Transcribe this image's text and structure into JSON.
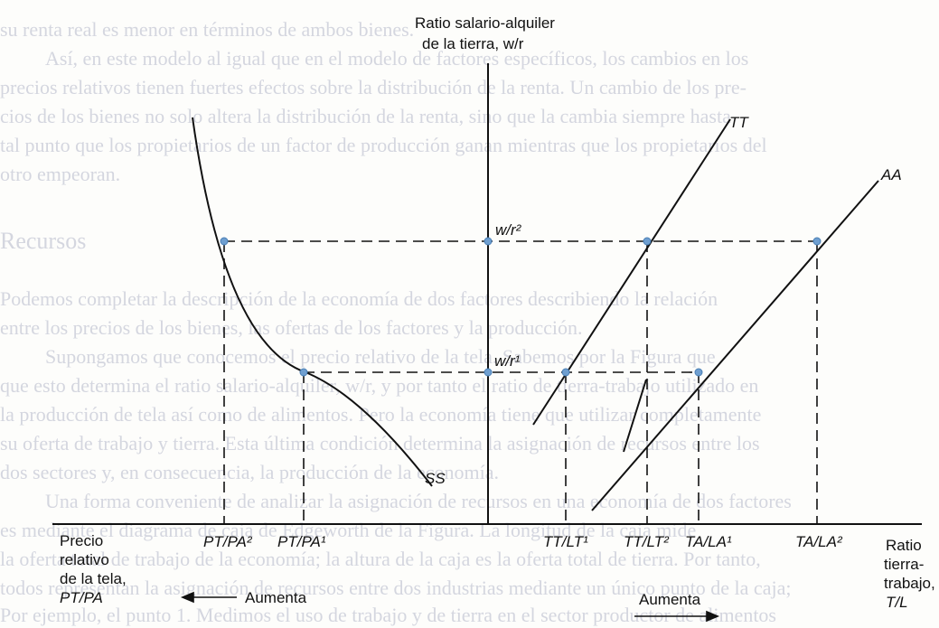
{
  "background_text": [
    "su renta real es menor en términos de ambos bienes.",
    "Así, en este modelo al igual que en el modelo de factores específicos, los cambios en los",
    "precios relativos tienen fuertes efectos sobre la distribución de la renta. Un cambio de los pre-",
    "cios de los bienes no solo altera la distribución de la renta, sino que la cambia siempre hasta",
    "tal punto que los propietarios de un factor de producción ganan mientras que los propietarios del",
    "otro empeoran.",
    "Recursos",
    "Podemos completar la descripción de la economía de dos factores describiendo la relación",
    "entre los precios de los bienes, las ofertas de los factores y la producción.",
    "Supongamos que conocemos el precio relativo de la tela. Sabemos por la Figura que",
    "que esto determina el ratio salario-alquiler, w/r, y por tanto el ratio de tierra-trabajo utilizado en",
    "la producción de tela así como de alimentos. Pero la economía tiene que utilizar completamente",
    "su oferta de trabajo y tierra. Esta última condición determina la asignación de recursos entre los",
    "dos sectores y, en consecuencia, la producción de la economía.",
    "Una forma conveniente de analizar la asignación de recursos en una economía de dos factores",
    "es mediante el diagrama de caja de Edgeworth de la Figura. La longitud de la caja mide",
    "la oferta total de trabajo de la economía; la altura de la caja es la oferta total de tierra. Por tanto,",
    "todos representan la asignación de recursos entre dos industrias mediante un único punto de la caja;",
    "Por ejemplo, el punto 1. Medimos el uso de trabajo y de tierra en el sector productor de alimentos"
  ],
  "y_axis_title": [
    "Ratio salario-alquiler",
    "de la tierra, w/r"
  ],
  "x_axis_title": [
    "Ratio",
    "tierra-",
    "trabajo,",
    "T/L"
  ],
  "left_axis_title": [
    "Precio",
    "relativo",
    "de la tela,",
    "PT/PA"
  ],
  "curves": {
    "ss": "SS",
    "tt": "TT",
    "aa": "AA"
  },
  "wage_levels": {
    "w2": "w/r²",
    "w1": "w/r¹"
  },
  "tick_labels": {
    "pt_pa_2": "PT/PA²",
    "pt_pa_1": "PT/PA¹",
    "tt_l_1": "TT/LT¹",
    "tt_l_2": "TT/LT²",
    "ta_l_1": "TA/LA¹",
    "ta_l_2": "TA/LA²"
  },
  "arrows": {
    "left": "Aumenta",
    "right": "Aumenta"
  },
  "colors": {
    "ink": "#111111",
    "point": "#6f9fd0",
    "background_text": "#d4d6df"
  }
}
